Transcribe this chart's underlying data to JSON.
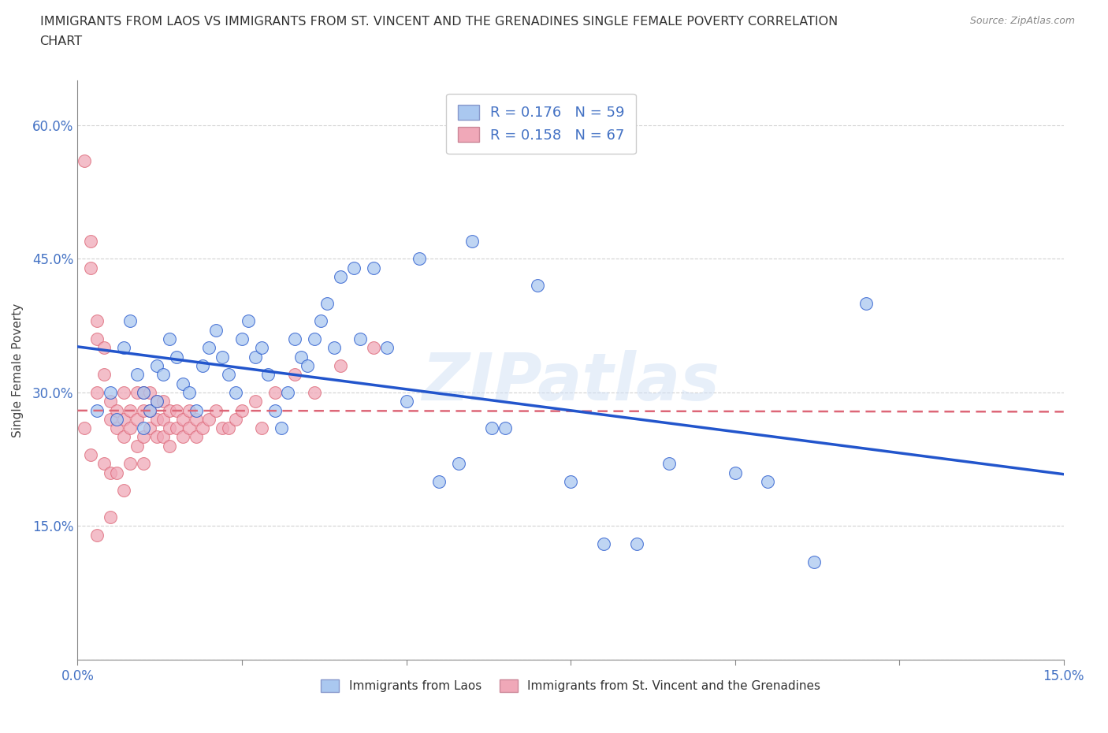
{
  "title_line1": "IMMIGRANTS FROM LAOS VS IMMIGRANTS FROM ST. VINCENT AND THE GRENADINES SINGLE FEMALE POVERTY CORRELATION",
  "title_line2": "CHART",
  "source_text": "Source: ZipAtlas.com",
  "ylabel": "Single Female Poverty",
  "xmin": 0.0,
  "xmax": 0.15,
  "ymin": 0.0,
  "ymax": 0.65,
  "R_laos": 0.176,
  "N_laos": 59,
  "R_stvincent": 0.158,
  "N_stvincent": 67,
  "color_laos": "#aac8f0",
  "color_stvincent": "#f0a8b8",
  "line_color_laos": "#2255cc",
  "line_color_stvincent": "#dd6677",
  "watermark": "ZIPatlas",
  "laos_x": [
    0.003,
    0.005,
    0.006,
    0.007,
    0.008,
    0.009,
    0.01,
    0.01,
    0.011,
    0.012,
    0.012,
    0.013,
    0.014,
    0.015,
    0.016,
    0.017,
    0.018,
    0.019,
    0.02,
    0.021,
    0.022,
    0.023,
    0.024,
    0.025,
    0.026,
    0.027,
    0.028,
    0.029,
    0.03,
    0.031,
    0.032,
    0.033,
    0.034,
    0.035,
    0.036,
    0.037,
    0.038,
    0.039,
    0.04,
    0.042,
    0.043,
    0.045,
    0.047,
    0.05,
    0.052,
    0.055,
    0.058,
    0.06,
    0.063,
    0.065,
    0.07,
    0.075,
    0.08,
    0.085,
    0.09,
    0.1,
    0.105,
    0.112,
    0.12
  ],
  "laos_y": [
    0.28,
    0.3,
    0.27,
    0.35,
    0.38,
    0.32,
    0.3,
    0.26,
    0.28,
    0.33,
    0.29,
    0.32,
    0.36,
    0.34,
    0.31,
    0.3,
    0.28,
    0.33,
    0.35,
    0.37,
    0.34,
    0.32,
    0.3,
    0.36,
    0.38,
    0.34,
    0.35,
    0.32,
    0.28,
    0.26,
    0.3,
    0.36,
    0.34,
    0.33,
    0.36,
    0.38,
    0.4,
    0.35,
    0.43,
    0.44,
    0.36,
    0.44,
    0.35,
    0.29,
    0.45,
    0.2,
    0.22,
    0.47,
    0.26,
    0.26,
    0.42,
    0.2,
    0.13,
    0.13,
    0.22,
    0.21,
    0.2,
    0.11,
    0.4
  ],
  "stvincent_x": [
    0.001,
    0.001,
    0.002,
    0.002,
    0.002,
    0.003,
    0.003,
    0.003,
    0.003,
    0.004,
    0.004,
    0.004,
    0.005,
    0.005,
    0.005,
    0.005,
    0.006,
    0.006,
    0.006,
    0.007,
    0.007,
    0.007,
    0.007,
    0.008,
    0.008,
    0.008,
    0.009,
    0.009,
    0.009,
    0.01,
    0.01,
    0.01,
    0.01,
    0.011,
    0.011,
    0.011,
    0.012,
    0.012,
    0.012,
    0.013,
    0.013,
    0.013,
    0.014,
    0.014,
    0.014,
    0.015,
    0.015,
    0.016,
    0.016,
    0.017,
    0.017,
    0.018,
    0.018,
    0.019,
    0.02,
    0.021,
    0.022,
    0.023,
    0.024,
    0.025,
    0.027,
    0.028,
    0.03,
    0.033,
    0.036,
    0.04,
    0.045
  ],
  "stvincent_y": [
    0.56,
    0.26,
    0.47,
    0.44,
    0.23,
    0.38,
    0.36,
    0.3,
    0.14,
    0.35,
    0.32,
    0.22,
    0.29,
    0.27,
    0.21,
    0.16,
    0.28,
    0.26,
    0.21,
    0.3,
    0.27,
    0.25,
    0.19,
    0.28,
    0.26,
    0.22,
    0.3,
    0.27,
    0.24,
    0.3,
    0.28,
    0.25,
    0.22,
    0.3,
    0.28,
    0.26,
    0.29,
    0.27,
    0.25,
    0.29,
    0.27,
    0.25,
    0.28,
    0.26,
    0.24,
    0.28,
    0.26,
    0.27,
    0.25,
    0.28,
    0.26,
    0.27,
    0.25,
    0.26,
    0.27,
    0.28,
    0.26,
    0.26,
    0.27,
    0.28,
    0.29,
    0.26,
    0.3,
    0.32,
    0.3,
    0.33,
    0.35
  ]
}
